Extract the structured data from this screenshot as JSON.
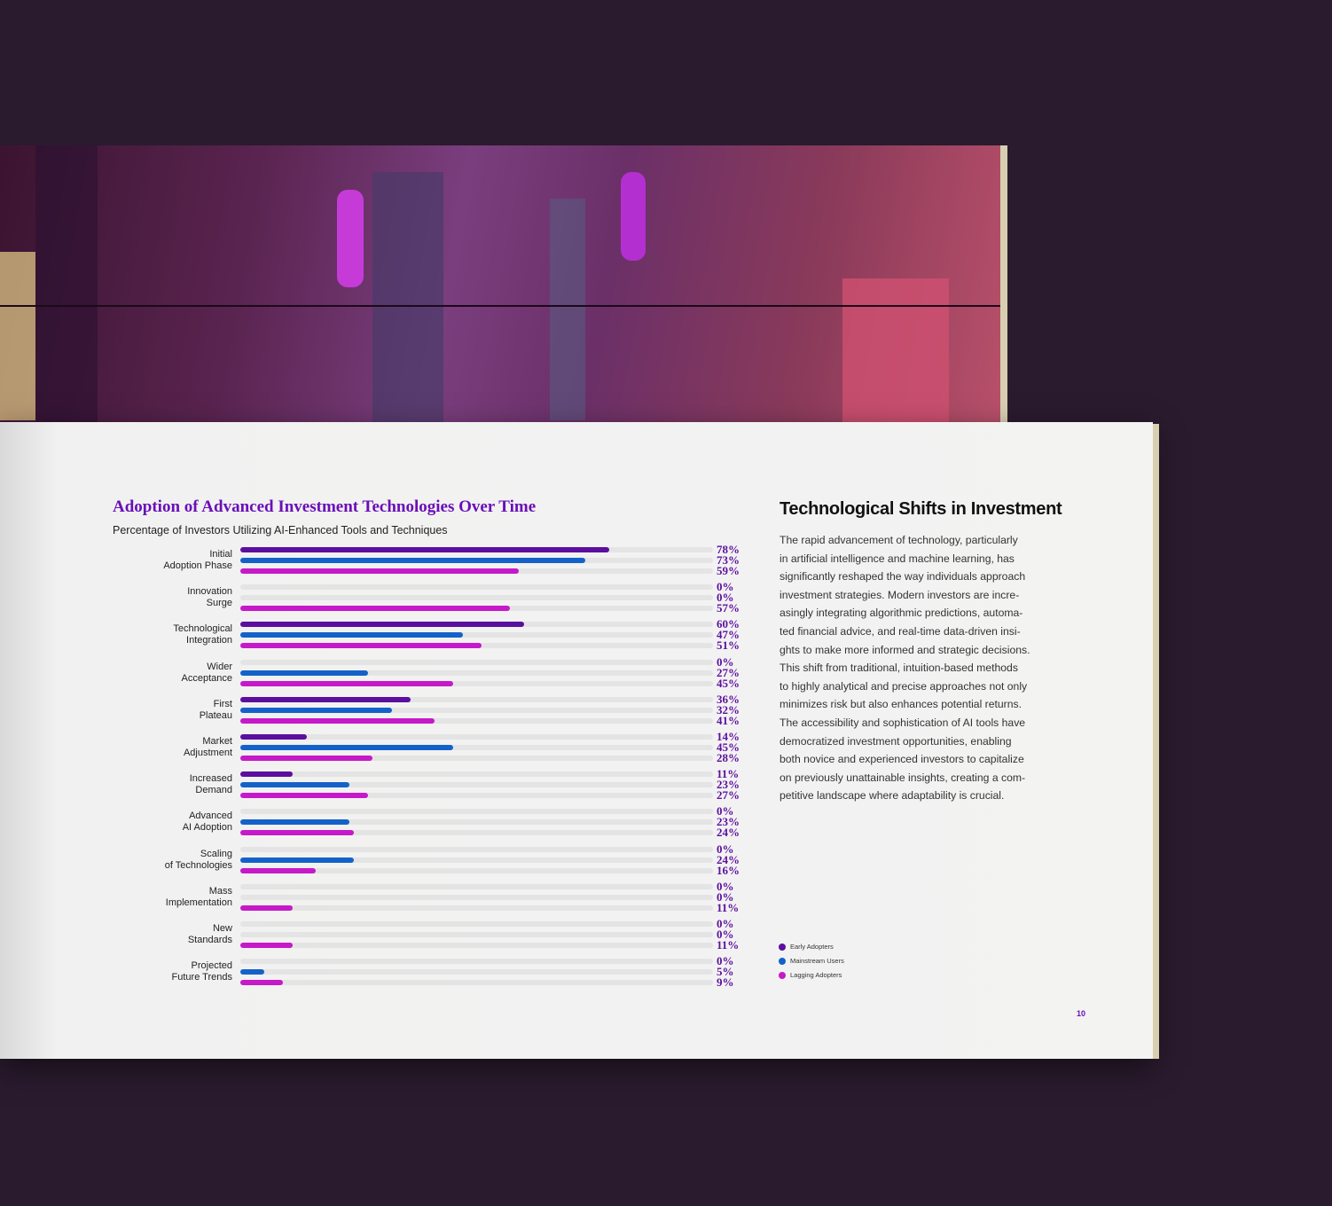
{
  "chart_data": {
    "type": "bar",
    "orientation": "horizontal",
    "title": "Adoption of Advanced Investment Technologies Over Time",
    "subtitle": "Percentage of Investors Utilizing AI-Enhanced Tools and Techniques",
    "categories": [
      "Initial\nAdoption Phase",
      "Innovation\nSurge",
      "Technological\nIntegration",
      "Wider\nAcceptance",
      "First\nPlateau",
      "Market\nAdjustment",
      "Increased\nDemand",
      "Advanced\nAI Adoption",
      "Scaling\nof Technologies",
      "Mass\nImplementation",
      "New\nStandards",
      "Projected\nFuture Trends"
    ],
    "series": [
      {
        "name": "Early Adopters",
        "color": "#5b0f9e",
        "values": [
          78,
          0,
          60,
          0,
          36,
          14,
          11,
          0,
          0,
          0,
          0,
          0
        ],
        "value_labels": [
          "78%",
          "0%",
          "60%",
          "0%",
          "36%",
          "14%",
          "11%",
          "0%",
          "0%",
          "0%",
          "0%",
          "0%"
        ]
      },
      {
        "name": "Mainstream Users",
        "color": "#1462c9",
        "values": [
          73,
          0,
          47,
          27,
          32,
          45,
          23,
          23,
          24,
          0,
          0,
          5
        ],
        "value_labels": [
          "73%",
          "0%",
          "47%",
          "27%",
          "32%",
          "45%",
          "23%",
          "23%",
          "24%",
          "0%",
          "0%",
          "5%"
        ]
      },
      {
        "name": "Lagging Adopters",
        "color": "#c619c9",
        "values": [
          59,
          57,
          51,
          45,
          41,
          28,
          27,
          24,
          16,
          11,
          11,
          9
        ],
        "value_labels": [
          "59%",
          "57%",
          "51%",
          "45%",
          "41%",
          "28%",
          "27%",
          "24%",
          "16%",
          "11%",
          "11%",
          "9%"
        ]
      }
    ],
    "xlim": [
      0,
      100
    ],
    "legend": "bottom-right"
  },
  "text": {
    "heading": "Technological Shifts in Investment",
    "body": "The rapid advancement of technology, particularly\nin artificial intelligence and machine learning, has\nsignificantly reshaped the way individuals approach\ninvestment strategies. Modern investors are incre-\nasingly integrating algorithmic predictions, automa-\nted financial advice, and real-time data-driven insi-\nghts to make more informed and strategic decisions.\nThis shift from traditional, intuition-based methods\nto highly analytical and precise approaches not only\nminimizes risk but also enhances potential returns.\nThe accessibility and sophistication of AI tools have\ndemocratized investment opportunities, enabling\nboth novice and experienced investors to capitalize\non previously unattainable insights, creating a com-\npetitive landscape where adaptability is crucial.",
    "page_number": "10"
  }
}
